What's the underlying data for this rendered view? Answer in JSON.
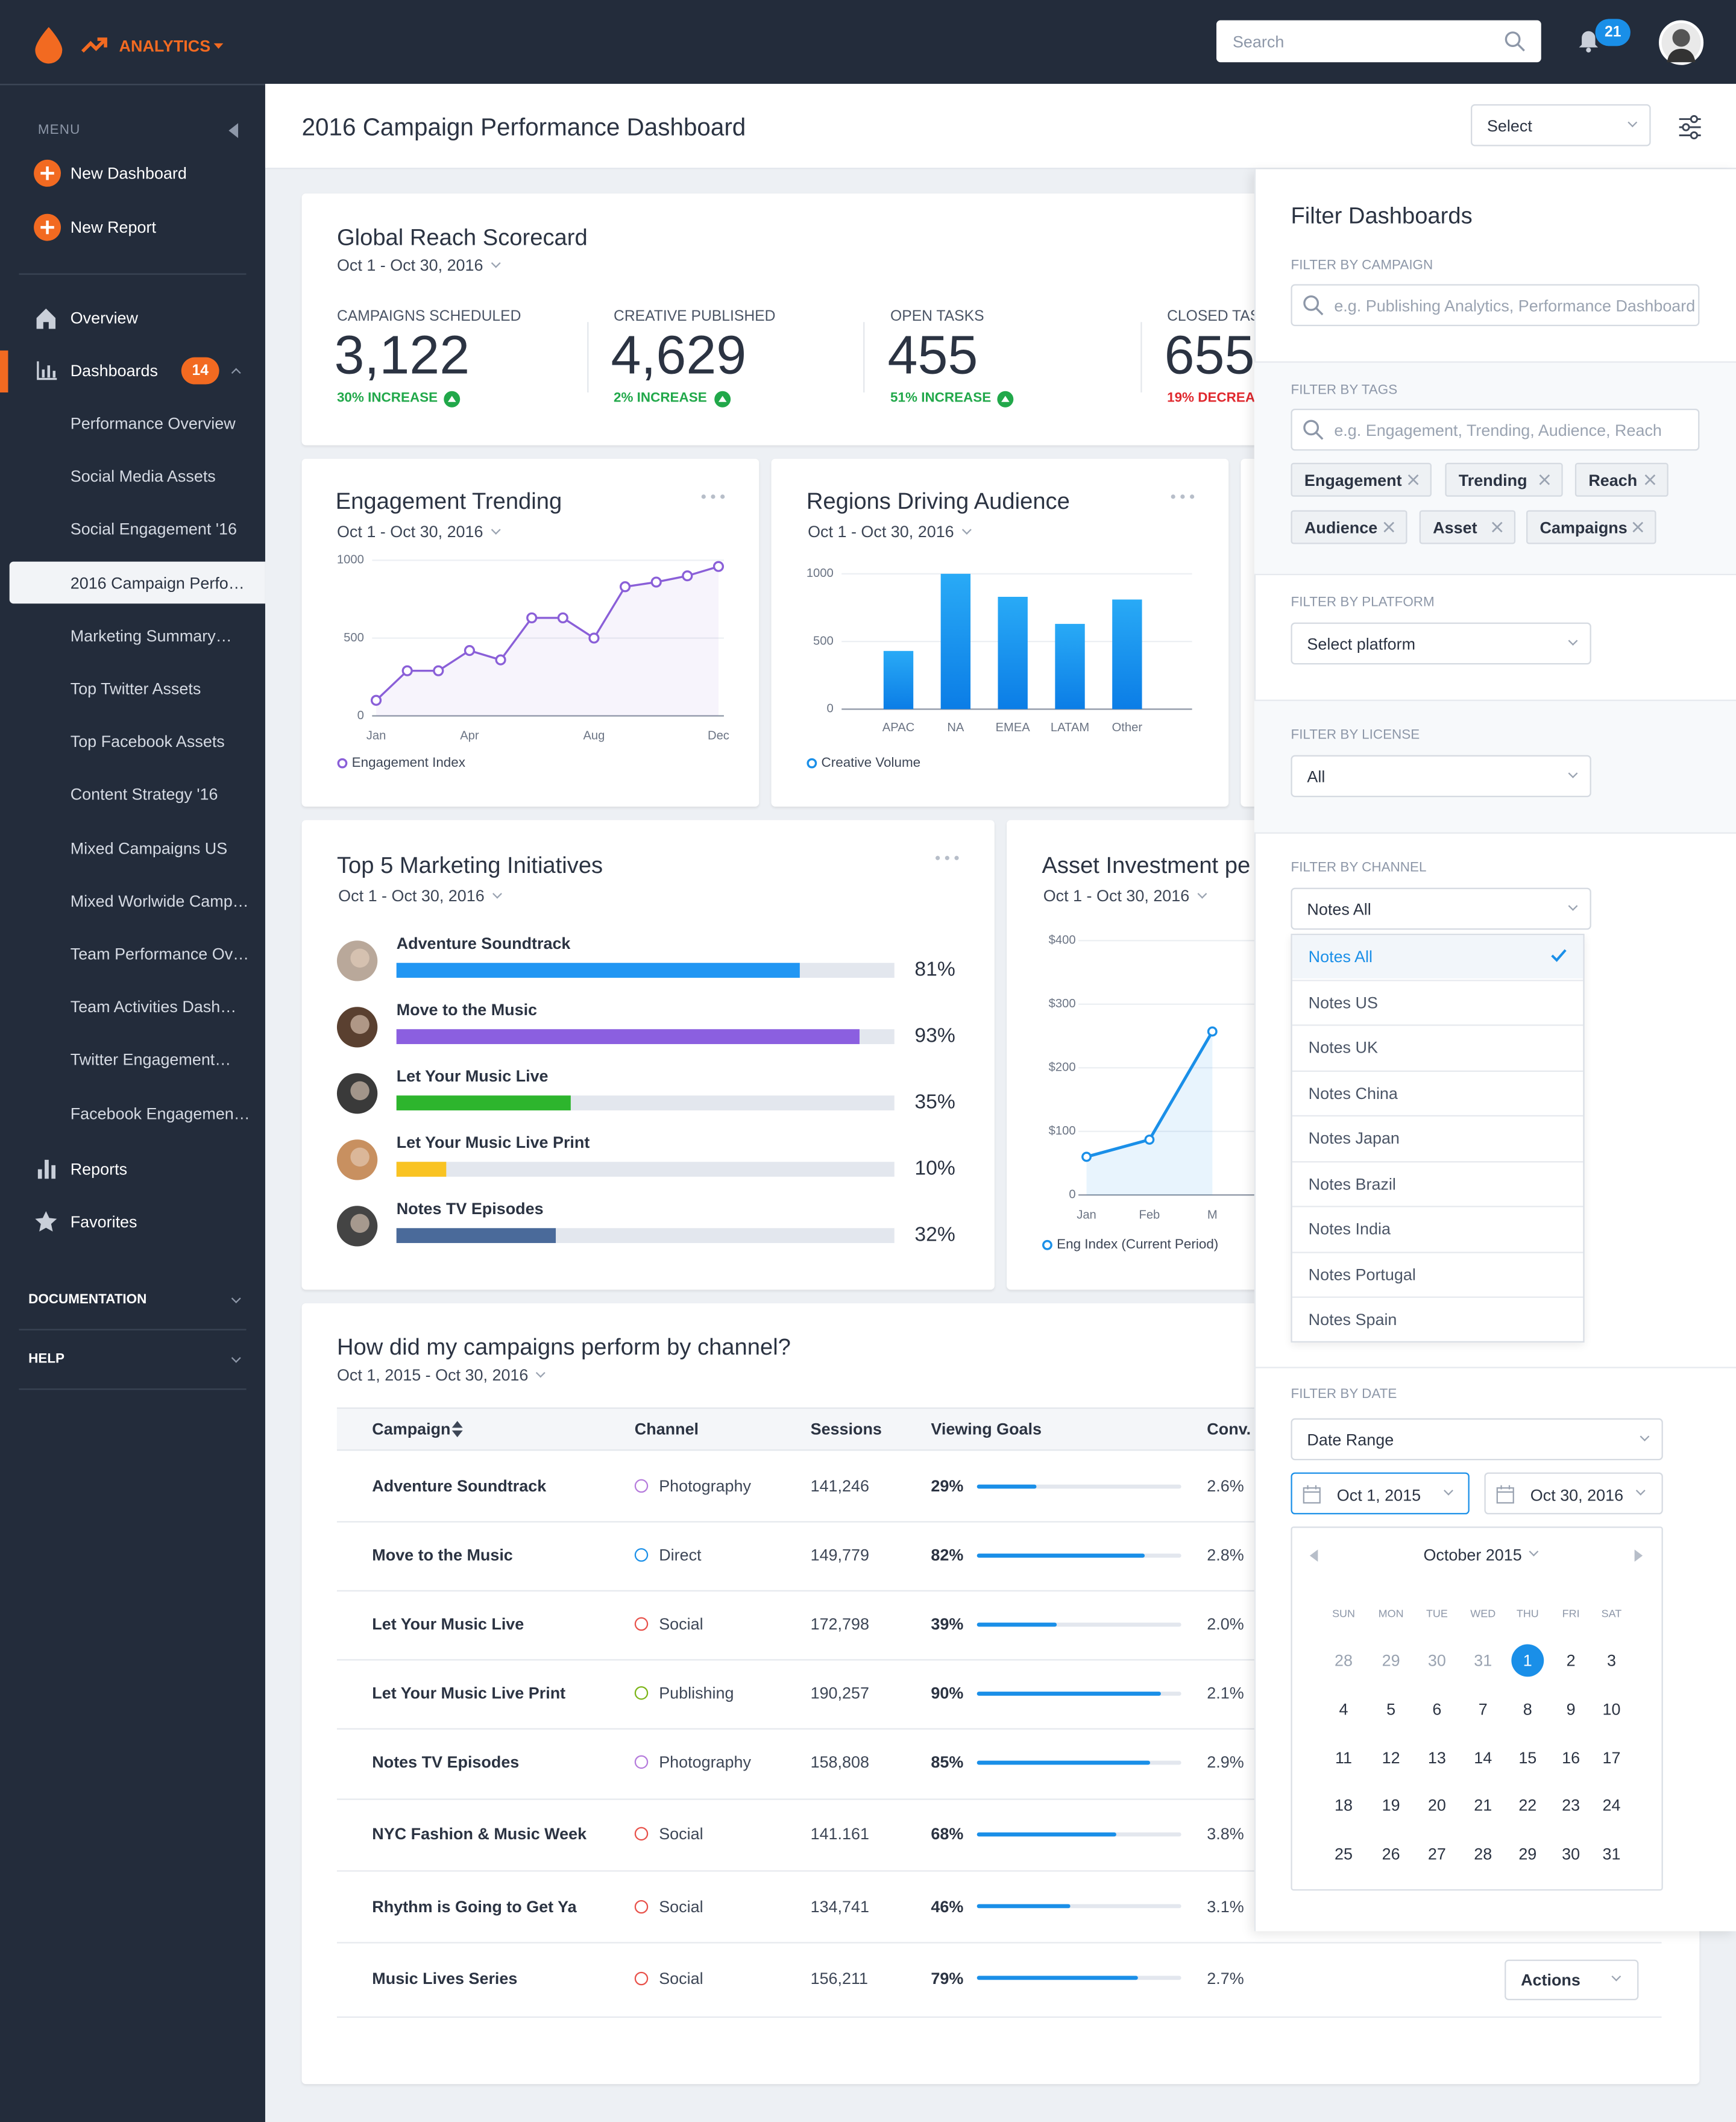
{
  "header": {
    "brand": "ANALYTICS",
    "search_placeholder": "Search",
    "notification_count": 21
  },
  "sidebar": {
    "menu_label": "MENU",
    "actions": [
      "New Dashboard",
      "New Report"
    ],
    "nav": [
      {
        "label": "Overview"
      },
      {
        "label": "Dashboards",
        "badge": 14
      }
    ],
    "dashboards": [
      "Performance Overview",
      "Social Media Assets",
      "Social Engagement '16",
      "2016 Campaign Perfo…",
      "Marketing Summary…",
      "Top Twitter Assets",
      "Top Facebook Assets",
      "Content Strategy '16",
      "Mixed Campaigns US",
      "Mixed Worlwide Camp…",
      "Team Performance Ov…",
      "Team Activities Dash…",
      "Twitter Engagement…",
      "Facebook Engagemen…"
    ],
    "active_dashboard": 3,
    "bottom_nav": [
      "Reports",
      "Favorites"
    ],
    "sections": [
      "DOCUMENTATION",
      "HELP"
    ]
  },
  "page": {
    "title": "2016 Campaign Performance Dashboard",
    "select": "Select"
  },
  "scorecard": {
    "title": "Global Reach Scorecard",
    "subtitle": "Oct 1 - Oct 30, 2016",
    "metrics": [
      {
        "label": "CAMPAIGNS SCHEDULED",
        "value": "3,122",
        "change": "30% INCREASE",
        "trend": "up"
      },
      {
        "label": "CREATIVE PUBLISHED",
        "value": "4,629",
        "change": "2% INCREASE",
        "trend": "up"
      },
      {
        "label": "OPEN TASKS",
        "value": "455",
        "change": "51% INCREASE",
        "trend": "up"
      },
      {
        "label": "CLOSED TAS",
        "value": "655",
        "change": "19% DECREAS",
        "trend": "down"
      }
    ]
  },
  "chart_data": [
    {
      "type": "line",
      "title": "Engagement Trending",
      "subtitle": "Oct 1 - Oct 30, 2016",
      "categories": [
        "Jan",
        null,
        null,
        "Apr",
        null,
        null,
        null,
        "Aug",
        null,
        null,
        null,
        "Dec"
      ],
      "series": [
        {
          "name": "Engagement Index",
          "color": "#8a5fd8",
          "values": [
            100,
            290,
            290,
            420,
            360,
            630,
            630,
            500,
            830,
            860,
            900,
            960
          ]
        }
      ],
      "ylim": [
        0,
        1000
      ],
      "yticks": [
        0,
        500,
        1000
      ],
      "grid": true
    },
    {
      "type": "bar",
      "title": "Regions Driving Audience",
      "subtitle": "Oct 1 - Oct 30, 2016",
      "categories": [
        "APAC",
        "NA",
        "EMEA",
        "LATAM",
        "Other"
      ],
      "series": [
        {
          "name": "Creative Volume",
          "color": "#1a8fe8",
          "values": [
            430,
            1000,
            830,
            630,
            810
          ]
        }
      ],
      "ylim": [
        0,
        1000
      ],
      "yticks": [
        0,
        500,
        1000
      ],
      "grid": true
    },
    {
      "type": "hbar",
      "title": "Top 5 Marketing Initiatives",
      "subtitle": "Oct 1 - Oct 30, 2016",
      "categories": [
        "Adventure Soundtrack",
        "Move to the Music",
        "Let Your Music Live",
        "Let Your Music Live Print",
        "Notes TV Episodes"
      ],
      "values": [
        81,
        93,
        35,
        10,
        32
      ],
      "value_labels": [
        "81%",
        "93%",
        "35%",
        "10%",
        "32%"
      ],
      "colors": [
        "#2196f3",
        "#8b5fe0",
        "#2db52d",
        "#f9c322",
        "#4a6a9a"
      ],
      "xlim": [
        0,
        100
      ]
    },
    {
      "type": "area",
      "title": "Asset Investment pe",
      "subtitle": "Oct 1 - Oct 30, 2016",
      "categories": [
        "Jan",
        "Feb",
        "M"
      ],
      "series": [
        {
          "name": "Eng Index (Current Period)",
          "color": "#1a8fe8",
          "values": [
            60,
            87,
            257
          ]
        }
      ],
      "ylim": [
        0,
        400
      ],
      "yticks": [
        0,
        {
          "value": 100,
          "label": "$100"
        },
        {
          "value": 200,
          "label": "$200"
        },
        {
          "value": 300,
          "label": "$300"
        },
        {
          "value": 400,
          "label": "$400"
        }
      ],
      "grid": true
    }
  ],
  "table": {
    "title": "How did my campaigns perform by channel?",
    "subtitle": "Oct 1, 2015 - Oct 30, 2016",
    "columns": [
      "Campaign",
      "Channel",
      "Sessions",
      "Viewing Goals",
      "Conv."
    ],
    "channel_colors": {
      "Photography": "#b57bdc",
      "Direct": "#1a8fe8",
      "Social": "#e8514a",
      "Publishing": "#7cb518"
    },
    "rows": [
      {
        "campaign": "Adventure Soundtrack",
        "channel": "Photography",
        "sessions": "141,246",
        "viewing_goals": 29,
        "viewing_goals_label": "29%",
        "conv": "2.6%"
      },
      {
        "campaign": "Move to the Music",
        "channel": "Direct",
        "sessions": "149,779",
        "viewing_goals": 82,
        "viewing_goals_label": "82%",
        "conv": "2.8%"
      },
      {
        "campaign": "Let Your Music Live",
        "channel": "Social",
        "sessions": "172,798",
        "viewing_goals": 39,
        "viewing_goals_label": "39%",
        "conv": "2.0%"
      },
      {
        "campaign": "Let Your Music Live Print",
        "channel": "Publishing",
        "sessions": "190,257",
        "viewing_goals": 90,
        "viewing_goals_label": "90%",
        "conv": "2.1%"
      },
      {
        "campaign": "Notes TV Episodes",
        "channel": "Photography",
        "sessions": "158,808",
        "viewing_goals": 85,
        "viewing_goals_label": "85%",
        "conv": "2.9%"
      },
      {
        "campaign": "NYC Fashion & Music Week",
        "channel": "Social",
        "sessions": "141.161",
        "viewing_goals": 68,
        "viewing_goals_label": "68%",
        "conv": "3.8%"
      },
      {
        "campaign": "Rhythm is Going to Get Ya",
        "channel": "Social",
        "sessions": "134,741",
        "viewing_goals": 46,
        "viewing_goals_label": "46%",
        "conv": "3.1%"
      },
      {
        "campaign": "Music Lives Series",
        "channel": "Social",
        "sessions": "156,211",
        "viewing_goals": 79,
        "viewing_goals_label": "79%",
        "conv": "2.7%"
      }
    ],
    "actions": "Actions"
  },
  "filter": {
    "title": "Filter Dashboards",
    "campaign": {
      "label": "FILTER BY CAMPAIGN",
      "placeholder": "e.g. Publishing Analytics, Performance Dashboard"
    },
    "tags": {
      "label": "FILTER BY TAGS",
      "placeholder": "e.g. Engagement, Trending,  Audience, Reach",
      "items": [
        "Engagement",
        "Trending",
        "Reach",
        "Audience",
        "Asset",
        "Campaigns"
      ]
    },
    "platform": {
      "label": "FILTER BY PLATFORM",
      "value": "Select platform"
    },
    "license": {
      "label": "FILTER BY LICENSE",
      "value": "All"
    },
    "channel": {
      "label": "FILTER BY CHANNEL",
      "value": "Notes All",
      "options": [
        "Notes All",
        "Notes US",
        "Notes UK",
        "Notes China",
        "Notes Japan",
        "Notes Brazil",
        "Notes India",
        "Notes Portugal",
        "Notes Spain"
      ],
      "selected": 0
    },
    "date": {
      "label": "FILTER BY DATE",
      "value": "Date Range",
      "from": "Oct 1, 2015",
      "to": "Oct 30, 2016",
      "calendar": {
        "month": "October 2015",
        "weekdays": [
          "SUN",
          "MON",
          "TUE",
          "WED",
          "THU",
          "FRI",
          "SAT"
        ],
        "leading_days": [
          28,
          29,
          30,
          31
        ],
        "days": [
          1,
          2,
          3,
          4,
          5,
          6,
          7,
          8,
          9,
          10,
          11,
          12,
          13,
          14,
          15,
          16,
          17,
          18,
          19,
          20,
          21,
          22,
          23,
          24,
          25,
          26,
          27,
          28,
          29,
          30,
          31
        ],
        "selected": 1
      }
    }
  }
}
